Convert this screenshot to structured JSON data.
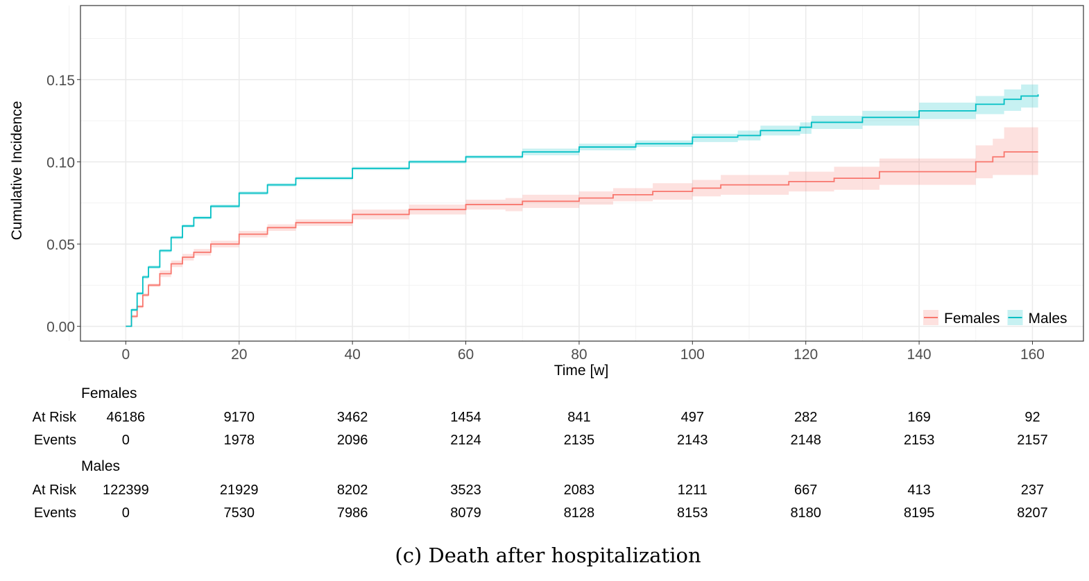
{
  "chart_data": {
    "type": "line",
    "subtype": "step cumulative incidence with confidence bands",
    "caption": "(c) Death after hospitalization",
    "xlabel": "Time [w]",
    "ylabel": "Cumulative Incidence",
    "xlim": [
      -8,
      169
    ],
    "ylim": [
      -0.009,
      0.195
    ],
    "xticks": [
      0,
      20,
      40,
      60,
      80,
      100,
      120,
      140,
      160
    ],
    "yticks": [
      0.0,
      0.05,
      0.1,
      0.15
    ],
    "ytick_labels": [
      "0.00",
      "0.05",
      "0.10",
      "0.15"
    ],
    "grid": true,
    "legend_position": "bottom-right",
    "series": [
      {
        "name": "Females",
        "color": "#F8766D",
        "x": [
          0,
          1,
          2,
          3,
          4,
          6,
          8,
          10,
          12,
          15,
          20,
          25,
          30,
          40,
          50,
          60,
          67,
          70,
          80,
          86,
          93,
          100,
          105,
          117,
          125,
          133,
          150,
          153,
          155,
          161
        ],
        "y": [
          0,
          0.006,
          0.012,
          0.019,
          0.025,
          0.032,
          0.038,
          0.042,
          0.045,
          0.05,
          0.056,
          0.06,
          0.063,
          0.068,
          0.071,
          0.074,
          0.074,
          0.076,
          0.078,
          0.08,
          0.082,
          0.084,
          0.086,
          0.088,
          0.09,
          0.094,
          0.1,
          0.103,
          0.106,
          0.106
        ],
        "lower": [
          0,
          0.005,
          0.011,
          0.018,
          0.024,
          0.03,
          0.036,
          0.04,
          0.043,
          0.048,
          0.054,
          0.058,
          0.061,
          0.065,
          0.068,
          0.071,
          0.07,
          0.072,
          0.074,
          0.076,
          0.077,
          0.079,
          0.08,
          0.082,
          0.083,
          0.086,
          0.09,
          0.092,
          0.092,
          0.092
        ],
        "upper": [
          0,
          0.007,
          0.013,
          0.02,
          0.026,
          0.034,
          0.04,
          0.044,
          0.047,
          0.052,
          0.058,
          0.062,
          0.065,
          0.071,
          0.074,
          0.077,
          0.078,
          0.08,
          0.082,
          0.084,
          0.087,
          0.089,
          0.092,
          0.094,
          0.097,
          0.102,
          0.11,
          0.114,
          0.121,
          0.121
        ]
      },
      {
        "name": "Males",
        "color": "#00BFC4",
        "x": [
          0,
          1,
          2,
          3,
          4,
          6,
          8,
          10,
          12,
          15,
          20,
          25,
          30,
          40,
          50,
          60,
          70,
          80,
          90,
          100,
          108,
          112,
          119,
          121,
          130,
          140,
          150,
          155,
          158,
          161
        ],
        "y": [
          0,
          0.01,
          0.02,
          0.03,
          0.036,
          0.046,
          0.054,
          0.061,
          0.066,
          0.073,
          0.081,
          0.086,
          0.09,
          0.096,
          0.1,
          0.103,
          0.106,
          0.109,
          0.111,
          0.115,
          0.116,
          0.119,
          0.121,
          0.124,
          0.127,
          0.131,
          0.135,
          0.138,
          0.14,
          0.141
        ],
        "lower": [
          0,
          0.009,
          0.019,
          0.029,
          0.035,
          0.045,
          0.053,
          0.06,
          0.065,
          0.072,
          0.08,
          0.085,
          0.089,
          0.095,
          0.099,
          0.102,
          0.104,
          0.107,
          0.109,
          0.112,
          0.113,
          0.116,
          0.117,
          0.12,
          0.122,
          0.126,
          0.129,
          0.131,
          0.133,
          0.133
        ],
        "upper": [
          0,
          0.011,
          0.021,
          0.031,
          0.037,
          0.047,
          0.055,
          0.062,
          0.067,
          0.074,
          0.082,
          0.087,
          0.091,
          0.097,
          0.101,
          0.104,
          0.108,
          0.111,
          0.113,
          0.117,
          0.119,
          0.122,
          0.124,
          0.128,
          0.131,
          0.136,
          0.14,
          0.144,
          0.147,
          0.149
        ]
      }
    ],
    "risk_table": {
      "times": [
        0,
        20,
        40,
        60,
        80,
        100,
        120,
        140,
        160
      ],
      "groups": [
        {
          "name": "Females",
          "rows": [
            {
              "label": "At Risk",
              "values": [
                "46186",
                "9170",
                "3462",
                "1454",
                "841",
                "497",
                "282",
                "169",
                "92"
              ]
            },
            {
              "label": "Events",
              "values": [
                "0",
                "1978",
                "2096",
                "2124",
                "2135",
                "2143",
                "2148",
                "2153",
                "2157"
              ]
            }
          ]
        },
        {
          "name": "Males",
          "rows": [
            {
              "label": "At Risk",
              "values": [
                "122399",
                "21929",
                "8202",
                "3523",
                "2083",
                "1211",
                "667",
                "413",
                "237"
              ]
            },
            {
              "label": "Events",
              "values": [
                "0",
                "7530",
                "7986",
                "8079",
                "8128",
                "8153",
                "8180",
                "8195",
                "8207"
              ]
            }
          ]
        }
      ]
    }
  }
}
